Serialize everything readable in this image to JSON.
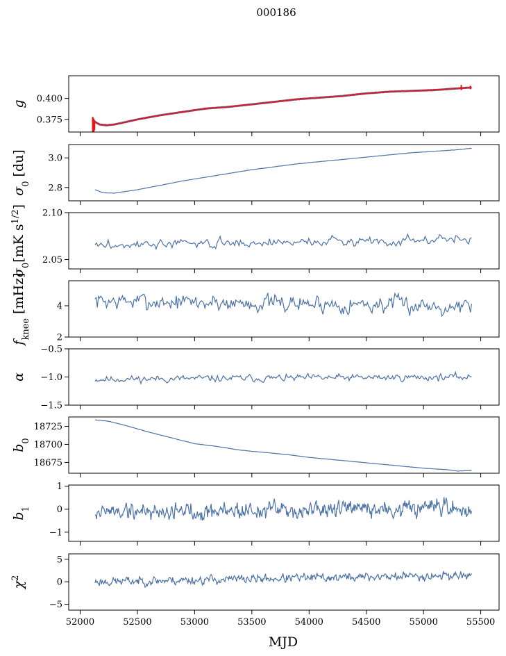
{
  "figure": {
    "suptitle": "000186",
    "xlabel": "MJD"
  },
  "chart_data": [
    {
      "type": "line",
      "panel": "g",
      "ylabel": "g",
      "xlim": [
        51900,
        55660
      ],
      "ylim": [
        0.36,
        0.427
      ],
      "yticks": [
        0.375,
        0.4
      ],
      "ytick_labels": [
        "0.375",
        "0.400"
      ],
      "colors": {
        "raw": "#e8141a",
        "smooth": "#4c72a5"
      },
      "series": [
        {
          "name": "fit",
          "x": [
            52110,
            52130,
            52170,
            52230,
            52300,
            52400,
            52500,
            52700,
            52900,
            53100,
            53300,
            53500,
            53700,
            53900,
            54100,
            54300,
            54500,
            54700,
            54900,
            55100,
            55300,
            55420
          ],
          "y": [
            0.375,
            0.372,
            0.369,
            0.368,
            0.369,
            0.372,
            0.375,
            0.38,
            0.384,
            0.388,
            0.39,
            0.393,
            0.396,
            0.399,
            0.401,
            0.403,
            0.406,
            0.408,
            0.409,
            0.41,
            0.412,
            0.413
          ]
        }
      ],
      "ytitle_note": ""
    },
    {
      "type": "line",
      "panel": "sigma0_du",
      "ylabel": "σ0 [du]",
      "xlim": [
        51900,
        55660
      ],
      "ylim": [
        2.71,
        3.09
      ],
      "yticks": [
        2.8,
        3.0
      ],
      "ytick_labels": [
        "2.8",
        "3.0"
      ],
      "series": [
        {
          "name": "sigma0",
          "x": [
            52130,
            52200,
            52300,
            52500,
            52700,
            52900,
            53100,
            53300,
            53500,
            53700,
            53900,
            54100,
            54300,
            54500,
            54700,
            54900,
            55100,
            55300,
            55420
          ],
          "y": [
            2.785,
            2.765,
            2.762,
            2.785,
            2.815,
            2.845,
            2.87,
            2.895,
            2.92,
            2.94,
            2.96,
            2.975,
            2.99,
            3.005,
            3.02,
            3.035,
            3.045,
            3.055,
            3.065
          ]
        }
      ]
    },
    {
      "type": "line",
      "panel": "sigma0_mK",
      "ylabel": "σ0[mK s1/2]",
      "xlim": [
        51900,
        55660
      ],
      "ylim": [
        2.04,
        2.1
      ],
      "yticks": [
        2.05,
        2.1
      ],
      "ytick_labels": [
        "2.05",
        "2.10"
      ],
      "generator": {
        "x0": 52130,
        "x1": 55420,
        "n": 260,
        "base": [
          2.065,
          2.072
        ],
        "noise": 0.004,
        "seed": 3
      }
    },
    {
      "type": "line",
      "panel": "fknee",
      "ylabel": "fknee [mHz]",
      "xlim": [
        51900,
        55660
      ],
      "ylim": [
        2.0,
        5.6
      ],
      "yticks": [
        2,
        4
      ],
      "ytick_labels": [
        "2",
        "4"
      ],
      "generator": {
        "x0": 52130,
        "x1": 55420,
        "n": 330,
        "base": [
          4.3,
          4.0
        ],
        "noise": 0.45,
        "seed": 7
      }
    },
    {
      "type": "line",
      "panel": "alpha",
      "ylabel": "α",
      "xlim": [
        51900,
        55660
      ],
      "ylim": [
        -1.5,
        -0.5
      ],
      "yticks": [
        -1.5,
        -1.0,
        -0.5
      ],
      "ytick_labels": [
        "−1.5",
        "−1.0",
        "−0.5"
      ],
      "generator": {
        "x0": 52130,
        "x1": 55420,
        "n": 330,
        "base": [
          -1.04,
          -1.0
        ],
        "noise": 0.05,
        "seed": 11
      }
    },
    {
      "type": "line",
      "panel": "b0",
      "ylabel": "b0",
      "xlim": [
        51900,
        55660
      ],
      "ylim": [
        18660,
        18738
      ],
      "yticks": [
        18675,
        18700,
        18725
      ],
      "ytick_labels": [
        "18675",
        "18700",
        "18725"
      ],
      "series": [
        {
          "name": "b0",
          "x": [
            52130,
            52250,
            52400,
            52600,
            52800,
            53000,
            53200,
            53400,
            53600,
            53800,
            54000,
            54200,
            54400,
            54600,
            54800,
            55000,
            55200,
            55300,
            55420
          ],
          "y": [
            18734,
            18732,
            18726,
            18717,
            18709,
            18701,
            18697,
            18692,
            18689,
            18686,
            18682,
            18679,
            18676,
            18673,
            18670,
            18667,
            18665,
            18663,
            18664
          ]
        }
      ]
    },
    {
      "type": "line",
      "panel": "b1",
      "ylabel": "b1",
      "xlim": [
        51900,
        55660
      ],
      "ylim": [
        -1.4,
        1.05
      ],
      "yticks": [
        -1,
        0,
        1
      ],
      "ytick_labels": [
        "−1",
        "0",
        "1"
      ],
      "generator": {
        "x0": 52130,
        "x1": 55420,
        "n": 520,
        "base": [
          -0.1,
          0.0
        ],
        "noise": 0.32,
        "seed": 19
      }
    },
    {
      "type": "line",
      "panel": "chi2",
      "ylabel": "χ2",
      "xlim": [
        51900,
        55660
      ],
      "ylim": [
        -6.3,
        6.2
      ],
      "yticks": [
        -5,
        0,
        5
      ],
      "ytick_labels": [
        "−5",
        "0",
        "5"
      ],
      "xticks": [
        52000,
        52500,
        53000,
        53500,
        54000,
        54500,
        55000,
        55500
      ],
      "xtick_labels": [
        "52000",
        "52500",
        "53000",
        "53500",
        "54000",
        "54500",
        "55000",
        "55500"
      ],
      "generator": {
        "x0": 52130,
        "x1": 55420,
        "n": 520,
        "base": [
          0.0,
          1.5
        ],
        "noise": 0.8,
        "seed": 23
      }
    }
  ]
}
